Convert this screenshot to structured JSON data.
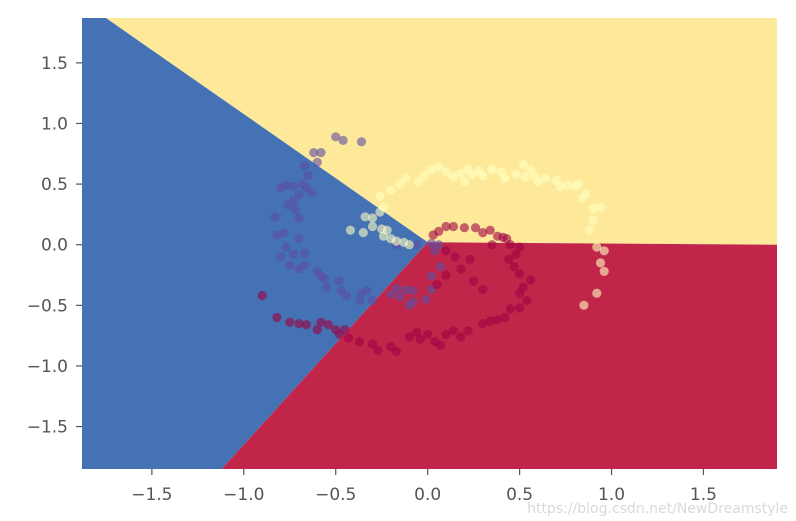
{
  "chart_data": {
    "type": "scatter",
    "title": "",
    "xlabel": "",
    "ylabel": "",
    "xlim": [
      -1.88,
      1.9
    ],
    "ylim": [
      -1.85,
      1.87
    ],
    "x_ticks": [
      -1.5,
      -1.0,
      -0.5,
      0.0,
      0.5,
      1.0,
      1.5
    ],
    "x_tick_labels": [
      "−1.5",
      "−1.0",
      "−0.5",
      "0.0",
      "0.5",
      "1.0",
      "1.5"
    ],
    "y_ticks": [
      1.5,
      1.0,
      0.5,
      0.0,
      -0.5,
      -1.0,
      -1.5
    ],
    "y_tick_labels": [
      "1.5",
      "1.0",
      "0.5",
      "0.0",
      "−0.5",
      "−1.0",
      "−1.5"
    ],
    "grid": false,
    "decision_regions": [
      {
        "class": "yellow",
        "color": "#fee99a",
        "polygon": [
          [
            -1.88,
            1.87
          ],
          [
            1.9,
            1.87
          ],
          [
            1.9,
            0.0
          ],
          [
            0.0,
            0.02
          ],
          [
            -1.75,
            1.87
          ]
        ]
      },
      {
        "class": "blue",
        "color": "#4472b4",
        "polygon": [
          [
            -1.88,
            1.87
          ],
          [
            -1.75,
            1.87
          ],
          [
            0.0,
            0.02
          ],
          [
            -1.12,
            -1.85
          ],
          [
            -1.88,
            -1.85
          ]
        ]
      },
      {
        "class": "red",
        "color": "#c1264a",
        "polygon": [
          [
            0.0,
            0.02
          ],
          [
            1.9,
            0.0
          ],
          [
            1.9,
            -1.85
          ],
          [
            -1.12,
            -1.85
          ]
        ]
      }
    ],
    "series": [
      {
        "color": "#5e4fa2",
        "points": [
          [
            -0.46,
            0.86
          ],
          [
            -0.5,
            0.89
          ],
          [
            -0.36,
            0.85
          ],
          [
            -0.62,
            0.76
          ],
          [
            -0.58,
            0.76
          ],
          [
            -0.6,
            0.68
          ],
          [
            -0.67,
            0.65
          ],
          [
            -0.65,
            0.57
          ],
          [
            -0.68,
            0.5
          ],
          [
            -0.73,
            0.48
          ],
          [
            -0.66,
            0.47
          ],
          [
            -0.77,
            0.49
          ],
          [
            -0.8,
            0.47
          ],
          [
            -0.63,
            0.43
          ],
          [
            -0.7,
            0.41
          ],
          [
            -0.73,
            0.36
          ],
          [
            -0.76,
            0.33
          ],
          [
            -0.72,
            0.29
          ],
          [
            -0.7,
            0.22
          ],
          [
            -0.83,
            0.23
          ],
          [
            -0.78,
            0.1
          ],
          [
            -0.82,
            0.08
          ],
          [
            -0.7,
            0.05
          ],
          [
            -0.77,
            -0.02
          ],
          [
            -0.8,
            -0.1
          ],
          [
            -0.73,
            -0.08
          ],
          [
            -0.67,
            -0.07
          ],
          [
            -0.75,
            -0.17
          ],
          [
            -0.67,
            -0.17
          ],
          [
            -0.7,
            -0.2
          ],
          [
            -0.6,
            -0.22
          ],
          [
            -0.58,
            -0.26
          ],
          [
            -0.56,
            -0.28
          ],
          [
            -0.48,
            -0.3
          ],
          [
            -0.55,
            -0.35
          ],
          [
            -0.47,
            -0.38
          ],
          [
            -0.44,
            -0.42
          ],
          [
            -0.36,
            -0.4
          ],
          [
            -0.33,
            -0.38
          ],
          [
            -0.37,
            -0.46
          ],
          [
            -0.3,
            -0.46
          ],
          [
            -0.2,
            -0.41
          ],
          [
            -0.17,
            -0.36
          ],
          [
            -0.12,
            -0.37
          ],
          [
            -0.08,
            -0.38
          ],
          [
            -0.15,
            -0.43
          ],
          [
            -0.08,
            -0.47
          ],
          [
            -0.1,
            -0.5
          ],
          [
            -0.01,
            -0.45
          ],
          [
            0.02,
            -0.37
          ],
          [
            0.02,
            -0.26
          ],
          [
            0.07,
            -0.18
          ],
          [
            0.04,
            -0.05
          ],
          [
            0.06,
            0.0
          ],
          [
            0.02,
            0.01
          ],
          [
            -0.06,
            0.0
          ],
          [
            -0.17,
            0.0
          ]
        ]
      },
      {
        "color": "#9e0142",
        "points": [
          [
            -0.9,
            -0.42
          ],
          [
            -0.82,
            -0.6
          ],
          [
            -0.75,
            -0.64
          ],
          [
            -0.7,
            -0.65
          ],
          [
            -0.66,
            -0.66
          ],
          [
            -0.6,
            -0.7
          ],
          [
            -0.58,
            -0.64
          ],
          [
            -0.54,
            -0.66
          ],
          [
            -0.5,
            -0.7
          ],
          [
            -0.48,
            -0.74
          ],
          [
            -0.45,
            -0.7
          ],
          [
            -0.43,
            -0.77
          ],
          [
            -0.37,
            -0.8
          ],
          [
            -0.3,
            -0.82
          ],
          [
            -0.27,
            -0.87
          ],
          [
            -0.2,
            -0.84
          ],
          [
            -0.17,
            -0.88
          ],
          [
            -0.1,
            -0.76
          ],
          [
            -0.06,
            -0.72
          ],
          [
            -0.04,
            -0.78
          ],
          [
            0.0,
            -0.74
          ],
          [
            0.04,
            -0.8
          ],
          [
            0.07,
            -0.83
          ],
          [
            0.1,
            -0.74
          ],
          [
            0.14,
            -0.71
          ],
          [
            0.18,
            -0.76
          ],
          [
            0.22,
            -0.71
          ],
          [
            0.3,
            -0.65
          ],
          [
            0.34,
            -0.63
          ],
          [
            0.38,
            -0.62
          ],
          [
            0.42,
            -0.6
          ],
          [
            0.45,
            -0.53
          ],
          [
            0.5,
            -0.52
          ],
          [
            0.54,
            -0.46
          ],
          [
            0.5,
            -0.4
          ],
          [
            0.52,
            -0.35
          ],
          [
            0.56,
            -0.29
          ],
          [
            0.5,
            -0.24
          ],
          [
            0.47,
            -0.18
          ],
          [
            0.44,
            -0.12
          ],
          [
            0.48,
            -0.08
          ],
          [
            0.45,
            0.0
          ],
          [
            0.41,
            0.06
          ],
          [
            0.38,
            0.07
          ],
          [
            0.34,
            0.12
          ],
          [
            0.3,
            0.1
          ],
          [
            0.26,
            0.14
          ],
          [
            0.2,
            0.14
          ],
          [
            0.14,
            0.15
          ],
          [
            0.1,
            0.15
          ],
          [
            0.06,
            0.11
          ],
          [
            0.03,
            0.08
          ],
          [
            0.1,
            -0.05
          ],
          [
            0.15,
            -0.1
          ],
          [
            0.18,
            -0.2
          ],
          [
            0.1,
            -0.25
          ],
          [
            0.05,
            -0.33
          ],
          [
            0.25,
            -0.3
          ],
          [
            0.3,
            -0.37
          ],
          [
            0.23,
            -0.12
          ],
          [
            0.5,
            -0.02
          ],
          [
            0.43,
            0.05
          ],
          [
            0.35,
            0.0
          ]
        ]
      },
      {
        "color": "#ffffbf",
        "points": [
          [
            -0.34,
            0.23
          ],
          [
            -0.3,
            0.22
          ],
          [
            -0.26,
            0.27
          ],
          [
            -0.24,
            0.31
          ],
          [
            -0.3,
            0.15
          ],
          [
            -0.25,
            0.13
          ],
          [
            -0.24,
            0.07
          ],
          [
            -0.2,
            0.05
          ],
          [
            -0.17,
            0.03
          ],
          [
            -0.13,
            0.02
          ],
          [
            -0.1,
            0.0
          ],
          [
            -0.22,
            0.12
          ],
          [
            -0.26,
            0.4
          ],
          [
            -0.2,
            0.45
          ],
          [
            -0.15,
            0.5
          ],
          [
            -0.12,
            0.55
          ],
          [
            -0.05,
            0.52
          ],
          [
            -0.02,
            0.57
          ],
          [
            0.02,
            0.62
          ],
          [
            0.06,
            0.64
          ],
          [
            0.1,
            0.6
          ],
          [
            0.14,
            0.56
          ],
          [
            0.18,
            0.59
          ],
          [
            0.22,
            0.62
          ],
          [
            0.24,
            0.58
          ],
          [
            0.3,
            0.57
          ],
          [
            0.35,
            0.62
          ],
          [
            0.4,
            0.6
          ],
          [
            0.42,
            0.55
          ],
          [
            0.48,
            0.58
          ],
          [
            0.52,
            0.66
          ],
          [
            0.56,
            0.62
          ],
          [
            0.58,
            0.57
          ],
          [
            0.6,
            0.52
          ],
          [
            0.64,
            0.55
          ],
          [
            0.7,
            0.53
          ],
          [
            0.72,
            0.48
          ],
          [
            0.76,
            0.49
          ],
          [
            0.8,
            0.48
          ],
          [
            0.82,
            0.5
          ],
          [
            0.86,
            0.42
          ],
          [
            0.84,
            0.38
          ],
          [
            0.9,
            0.3
          ],
          [
            0.94,
            0.31
          ],
          [
            0.9,
            0.2
          ],
          [
            0.88,
            0.12
          ],
          [
            0.92,
            -0.02
          ],
          [
            0.96,
            -0.05
          ],
          [
            0.94,
            -0.15
          ],
          [
            0.96,
            -0.22
          ],
          [
            0.92,
            -0.4
          ],
          [
            0.85,
            -0.5
          ],
          [
            -0.35,
            0.1
          ],
          [
            -0.42,
            0.12
          ],
          [
            0.2,
            0.52
          ],
          [
            0.28,
            0.61
          ],
          [
            0.53,
            0.56
          ]
        ]
      }
    ]
  },
  "watermark": "https://blog.csdn.net/NewDreamstyle"
}
